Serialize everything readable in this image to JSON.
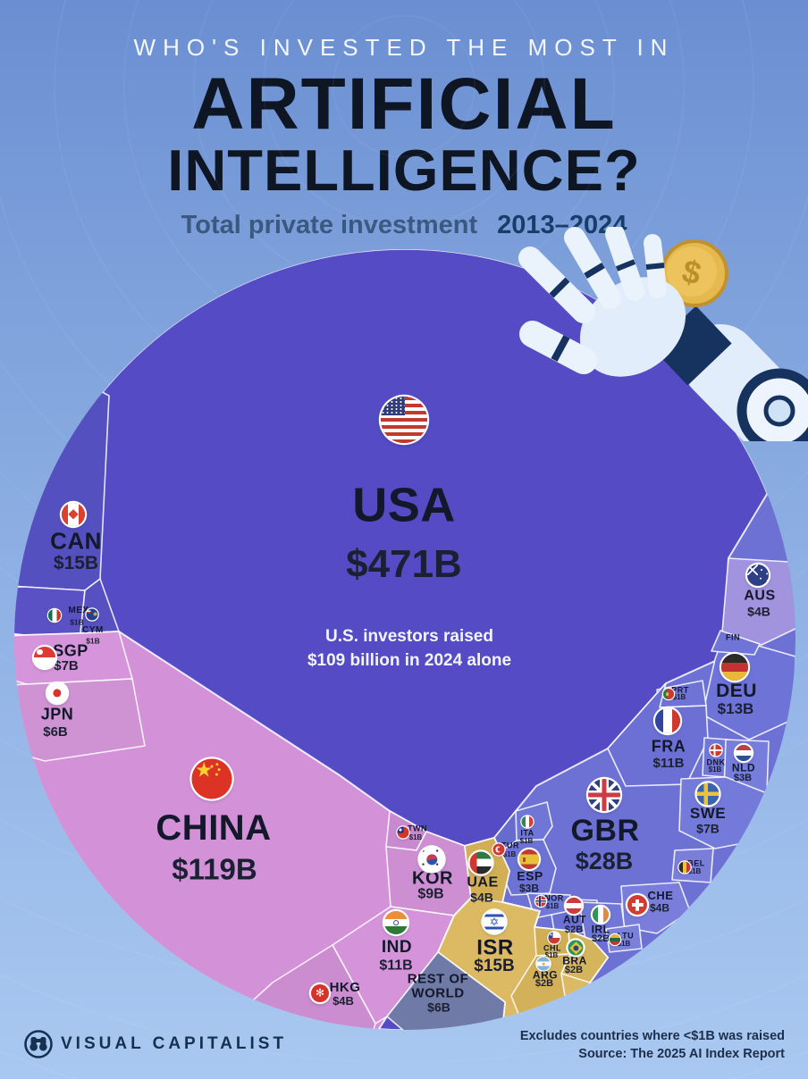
{
  "title": {
    "kicker": "WHO'S INVESTED THE MOST IN",
    "line1": "ARTIFICIAL",
    "line2": "INTELLIGENCE?",
    "subtitle": "Total private investment",
    "period": "2013–2024"
  },
  "cells": {
    "USA": {
      "code": "USA",
      "value": "$471B",
      "color": "#544bc5",
      "note1": "U.S. investors raised",
      "note2": "$109 billion in 2024 alone"
    },
    "CAN": {
      "code": "CAN",
      "value": "$15B",
      "color": "#5550bf"
    },
    "MEX": {
      "code": "MEX",
      "value": "$1B",
      "color": "#5a52c4"
    },
    "CYM": {
      "code": "CYM",
      "value": "$1B",
      "color": "#5750c1"
    },
    "SGP": {
      "code": "SGP",
      "value": "$7B",
      "color": "#d695da"
    },
    "JPN": {
      "code": "JPN",
      "value": "$6B",
      "color": "#cf92d3"
    },
    "CHN": {
      "code": "CHINA",
      "value": "$119B",
      "color": "#d392d7"
    },
    "TWN": {
      "code": "TWN",
      "value": "$1B",
      "color": "#c989cf"
    },
    "KOR": {
      "code": "KOR",
      "value": "$9B",
      "color": "#cd8ed2"
    },
    "IND": {
      "code": "IND",
      "value": "$11B",
      "color": "#d594d9"
    },
    "HKG": {
      "code": "HKG",
      "value": "$4B",
      "color": "#cb8cd0"
    },
    "ROW": {
      "code": "REST OF\nWORLD",
      "value": "$6B",
      "color": "#6f7aa6"
    },
    "ISR": {
      "code": "ISR",
      "value": "$15B",
      "color": "#dcba64"
    },
    "UAE": {
      "code": "UAE",
      "value": "$4B",
      "color": "#d2ae55"
    },
    "TUR": {
      "code": "TUR",
      "value": "$1B",
      "color": "#666bce"
    },
    "ITA": {
      "code": "ITA",
      "value": "$1B",
      "color": "#7076d6"
    },
    "ESP": {
      "code": "ESP",
      "value": "$3B",
      "color": "#6d72d5"
    },
    "NOR": {
      "code": "NOR",
      "value": "$1B",
      "color": "#7278d7"
    },
    "AUT": {
      "code": "AUT",
      "value": "$2B",
      "color": "#6b70d3"
    },
    "IRL": {
      "code": "IRL",
      "value": "$2B",
      "color": "#7177d6"
    },
    "LTU": {
      "code": "LTU",
      "value": "$1B",
      "color": "#7b80da"
    },
    "CHL": {
      "code": "CHL",
      "value": "$1B",
      "color": "#cfae54"
    },
    "BRA": {
      "code": "BRA",
      "value": "$2B",
      "color": "#d5b55c"
    },
    "ARG": {
      "code": "ARG",
      "value": "$2B",
      "color": "#d2b158"
    },
    "CHE": {
      "code": "CHE",
      "value": "$4B",
      "color": "#7a7eda"
    },
    "BEL": {
      "code": "BEL",
      "value": "$1B",
      "color": "#7a7ed9"
    },
    "GBR": {
      "code": "GBR",
      "value": "$28B",
      "color": "#6d71d4"
    },
    "SWE": {
      "code": "SWE",
      "value": "$7B",
      "color": "#747ad9"
    },
    "FRA": {
      "code": "FRA",
      "value": "$11B",
      "color": "#6c70d5"
    },
    "DNK": {
      "code": "DNK",
      "value": "$1B",
      "color": "#7177d7"
    },
    "NLD": {
      "code": "NLD",
      "value": "$3B",
      "color": "#777dda"
    },
    "PRT": {
      "code": "PRT",
      "value": "$1B",
      "color": "#6f73d5"
    },
    "DEU": {
      "code": "DEU",
      "value": "$13B",
      "color": "#6d73d7"
    },
    "FIN": {
      "code": "FIN",
      "value": "",
      "color": "#6f74d6"
    },
    "AUS": {
      "code": "AUS",
      "value": "$4B",
      "color": "#a193de"
    }
  },
  "footer": {
    "brand": "VISUAL CAPITALIST",
    "note1": "Excludes countries where <$1B was raised",
    "note2": "Source: The 2025 AI Index Report"
  },
  "chart_data": {
    "type": "voronoi-treemap (circular)",
    "title": "Who's invested the most in Artificial Intelligence?",
    "subtitle": "Total private investment 2013–2024",
    "unit": "USD billions",
    "annotation": "U.S. investors raised $109 billion in 2024 alone",
    "footnote": "Excludes countries where <$1B was raised",
    "source": "The 2025 AI Index Report",
    "categories": [
      "USA",
      "CHINA",
      "GBR",
      "CAN",
      "ISR",
      "DEU",
      "IND",
      "FRA",
      "KOR",
      "SGP",
      "SWE",
      "JPN",
      "REST OF WORLD",
      "UAE",
      "CHE",
      "AUS",
      "HKG",
      "ESP",
      "NLD",
      "AUT",
      "IRL",
      "BRA",
      "ARG",
      "MEX",
      "CYM",
      "TWN",
      "TUR",
      "ITA",
      "NOR",
      "CHL",
      "LTU",
      "BEL",
      "DNK",
      "PRT",
      "FIN"
    ],
    "values": [
      471,
      119,
      28,
      15,
      15,
      13,
      11,
      11,
      9,
      7,
      7,
      6,
      6,
      4,
      4,
      4,
      4,
      3,
      3,
      2,
      2,
      2,
      2,
      1,
      1,
      1,
      1,
      1,
      1,
      1,
      1,
      1,
      1,
      1,
      null
    ],
    "color_groups": {
      "americas-purple": [
        "USA",
        "CAN",
        "MEX",
        "CYM"
      ],
      "asia-pink": [
        "CHINA",
        "SGP",
        "JPN",
        "TWN",
        "KOR",
        "IND",
        "HKG"
      ],
      "europe-blue": [
        "GBR",
        "DEU",
        "FRA",
        "SWE",
        "NLD",
        "DNK",
        "PRT",
        "BEL",
        "CHE",
        "ESP",
        "ITA",
        "TUR",
        "NOR",
        "AUT",
        "IRL",
        "LTU",
        "FIN"
      ],
      "oceania-lilac": [
        "AUS"
      ],
      "mideast-latam-gold": [
        "ISR",
        "UAE",
        "CHL",
        "BRA",
        "ARG"
      ],
      "other-gray": [
        "REST OF WORLD"
      ]
    }
  }
}
